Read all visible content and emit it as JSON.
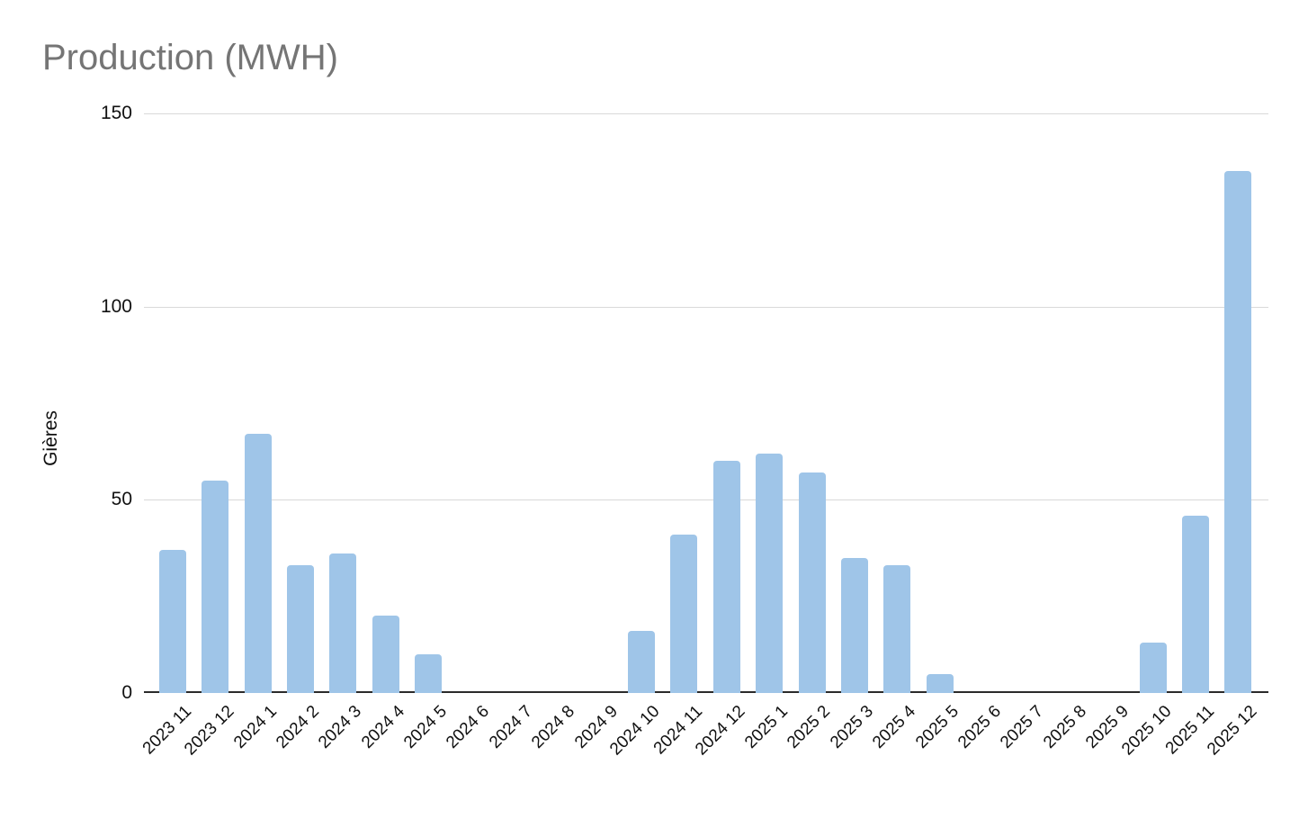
{
  "chart_data": {
    "type": "bar",
    "title": "Production (MWH)",
    "xlabel": "",
    "ylabel": "Gières",
    "categories": [
      "2023 11",
      "2023 12",
      "2024 1",
      "2024 2",
      "2024 3",
      "2024 4",
      "2024 5",
      "2024 6",
      "2024 7",
      "2024 8",
      "2024 9",
      "2024 10",
      "2024 11",
      "2024 12",
      "2025 1",
      "2025 2",
      "2025 3",
      "2025 4",
      "2025 5",
      "2025 6",
      "2025 7",
      "2025 8",
      "2025 9",
      "2025 10",
      "2025 11",
      "2025 12"
    ],
    "values": [
      37,
      55,
      67,
      33,
      36,
      20,
      10,
      0,
      0,
      0,
      0,
      16,
      41,
      60,
      62,
      57,
      35,
      33,
      5,
      0,
      0,
      0,
      0,
      13,
      46,
      135
    ],
    "ylim": [
      0,
      150
    ],
    "yticks": [
      0,
      50,
      100,
      150
    ],
    "grid": true,
    "legend_position": "none",
    "colors": {
      "bar": "#9fc5e8",
      "title_text": "#757575",
      "axis_text": "#111111",
      "gridline": "#d9d9d9",
      "axis_line": "#2b2b2b",
      "background": "#ffffff"
    }
  }
}
